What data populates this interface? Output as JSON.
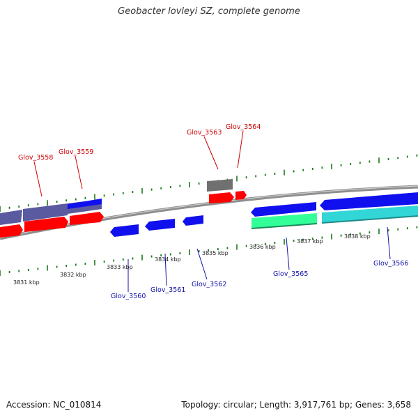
{
  "title": "Geobacter lovleyi SZ, complete genome",
  "footer": {
    "accession": "Accession: NC_010814",
    "stats": "Topology: circular; Length: 3,917,761 bp; Genes: 3,658"
  },
  "colors": {
    "backbone": "#8e8e8e",
    "forward_cds": "#ff0000",
    "reverse_cds": "#1010ee",
    "pseudo_gray": "#707070",
    "slate": "#5a5aa0",
    "spring_green": "#33ff99",
    "cyan": "#33d6d6",
    "tick": "#1a7a1a",
    "label_top": "#cc0000",
    "label_bottom": "#1010aa"
  },
  "scale_labels": [
    "3831 kbp",
    "3832 kbp",
    "3833 kbp",
    "3834 kbp",
    "3835 kbp",
    "3836 kbp",
    "3837 kbp",
    "3838 kbp"
  ],
  "gene_labels_top": [
    "Glov_3558",
    "Glov_3559",
    "Glov_3563",
    "Glov_3564"
  ],
  "gene_labels_bottom": [
    "Glov_3560",
    "Glov_3561",
    "Glov_3562",
    "Glov_3565",
    "Glov_3566"
  ]
}
